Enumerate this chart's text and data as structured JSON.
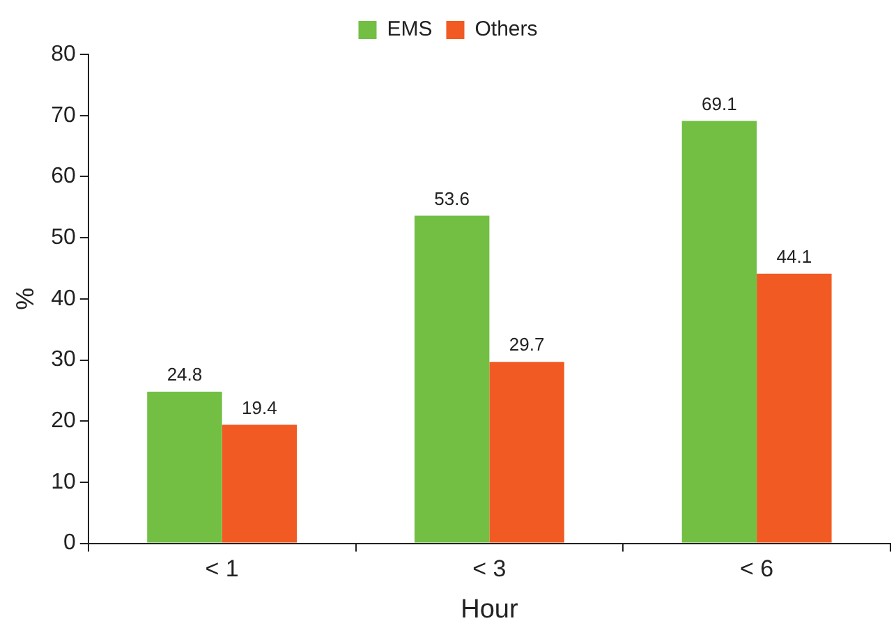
{
  "chart_data": {
    "type": "bar",
    "xlabel": "Hour",
    "ylabel": "%",
    "categories": [
      "< 1",
      "< 3",
      "< 6"
    ],
    "series": [
      {
        "name": "EMS",
        "color": "#72bf44",
        "values": [
          24.8,
          53.6,
          69.1
        ]
      },
      {
        "name": "Others",
        "color": "#f15a22",
        "values": [
          19.4,
          29.7,
          44.1
        ]
      }
    ],
    "ylim": [
      0,
      80
    ],
    "yticks": [
      0,
      10,
      20,
      30,
      40,
      50,
      60,
      70,
      80
    ],
    "grid": false,
    "legend": "top",
    "data_labels": true
  }
}
